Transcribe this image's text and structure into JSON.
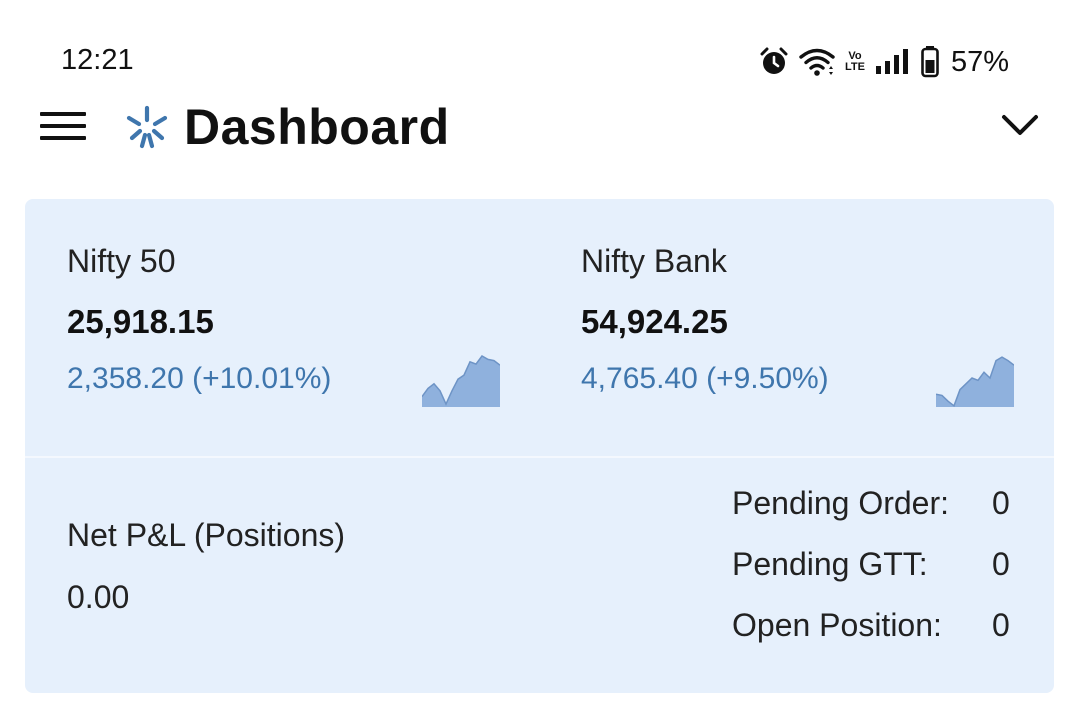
{
  "status_bar": {
    "time": "12:21",
    "volte_line1": "Vo",
    "volte_line2": "LTE",
    "battery": "57%",
    "icons": [
      "alarm-icon",
      "wifi-icon",
      "volte-icon",
      "signal-icon",
      "battery-icon"
    ]
  },
  "header": {
    "title": "Dashboard",
    "icons": [
      "menu-icon",
      "app-logo-icon",
      "chevron-down-icon"
    ],
    "accent_color": "#3f76ad"
  },
  "indices": [
    {
      "name": "Nifty 50",
      "value": "25,918.15",
      "change": "2,358.20 (+10.01%)",
      "sparkline": [
        0.18,
        0.32,
        0.4,
        0.28,
        0.05,
        0.28,
        0.48,
        0.55,
        0.78,
        0.74,
        0.88,
        0.82,
        0.8,
        0.72
      ]
    },
    {
      "name": "Nifty Bank",
      "value": "54,924.25",
      "change": "4,765.40 (+9.50%)",
      "sparkline": [
        0.22,
        0.2,
        0.1,
        0.02,
        0.3,
        0.4,
        0.5,
        0.46,
        0.6,
        0.5,
        0.8,
        0.86,
        0.8,
        0.72
      ]
    }
  ],
  "pnl": {
    "label": "Net P&L (Positions)",
    "value": "0.00"
  },
  "summary": [
    {
      "label": "Pending Order:",
      "value": "0"
    },
    {
      "label": "Pending GTT:",
      "value": "0"
    },
    {
      "label": "Open Position:",
      "value": "0"
    }
  ],
  "colors": {
    "card_bg": "#e6f0fc",
    "change_text": "#3f76ad",
    "sparkline_fill": "#8fb1dd",
    "sparkline_stroke": "#6e94c6"
  }
}
